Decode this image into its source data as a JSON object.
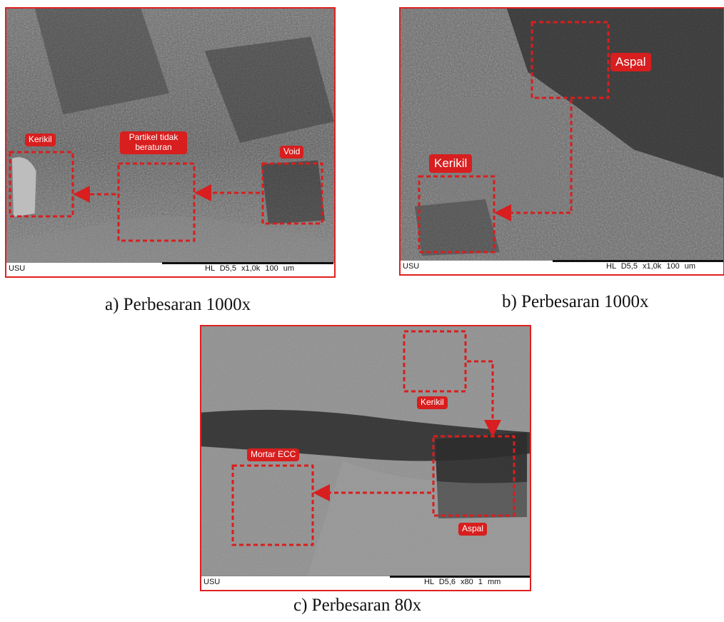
{
  "panel_a": {
    "footer_left": "USU",
    "footer_meta": "HL  D5,5  x1,0k     100 um",
    "caption": "a) Perbesaran 1000x",
    "labels": {
      "kerikil": "Kerikil",
      "partikel": "Partikel tidak beraturan",
      "void": "Void"
    }
  },
  "panel_b": {
    "footer_left": "USU",
    "footer_meta": "HL  D5,5  x1,0k     100 um",
    "caption": "b) Perbesaran 1000x",
    "labels": {
      "aspal": "Aspal",
      "kerikil": "Kerikil"
    }
  },
  "panel_c": {
    "footer_left": "USU",
    "footer_meta": "HL  D5,6  x80       1 mm",
    "caption": "c) Perbesaran 80x",
    "labels": {
      "kerikil": "Kerikil",
      "mortar": "Mortar ECC",
      "aspal": "Aspal"
    }
  },
  "colors": {
    "annotation": "#d81e1e",
    "frame": "#e02020"
  }
}
